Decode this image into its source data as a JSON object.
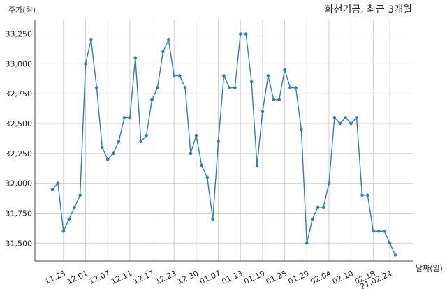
{
  "chart_data": {
    "type": "line",
    "title": "화천기공, 최근 3개월",
    "xlabel": "날짜(일)",
    "ylabel": "주가(원)",
    "ylim": [
      31350,
      33370
    ],
    "yticks": [
      31500,
      31750,
      32000,
      32250,
      32500,
      32750,
      33000,
      33250
    ],
    "ytick_labels": [
      "31,500",
      "31,750",
      "32,000",
      "32,250",
      "32,500",
      "32,750",
      "33,000",
      "33,250"
    ],
    "xtick_labels": [
      "11.25",
      "12.01",
      "12.07",
      "12.11",
      "12.17",
      "12.23",
      "12.30",
      "01.07",
      "01.13",
      "01.19",
      "01.25",
      "01.29",
      "02.04",
      "02.10",
      "02.18",
      "21.02.24"
    ],
    "xtick_index": [
      2,
      6,
      10,
      14,
      18,
      22,
      26,
      30,
      34,
      38,
      42,
      46,
      50,
      54,
      58,
      61
    ],
    "grid": true,
    "series": [
      {
        "name": "",
        "color": "#2f7fb5",
        "values": [
          31950,
          32000,
          31600,
          31700,
          31800,
          31900,
          33000,
          33200,
          32800,
          32300,
          32200,
          32250,
          32350,
          32550,
          32550,
          33050,
          32350,
          32400,
          32700,
          32800,
          33100,
          33200,
          32900,
          32900,
          32800,
          32250,
          32400,
          32150,
          32050,
          31700,
          32350,
          32900,
          32800,
          32800,
          33250,
          33250,
          32850,
          32150,
          32600,
          32900,
          32700,
          32700,
          32950,
          32800,
          32800,
          32450,
          31500,
          31700,
          31800,
          31800,
          32000,
          32550,
          32500,
          32550,
          32500,
          32550,
          31900,
          31900,
          31600,
          31600,
          31600,
          31500,
          31400
        ]
      }
    ]
  }
}
